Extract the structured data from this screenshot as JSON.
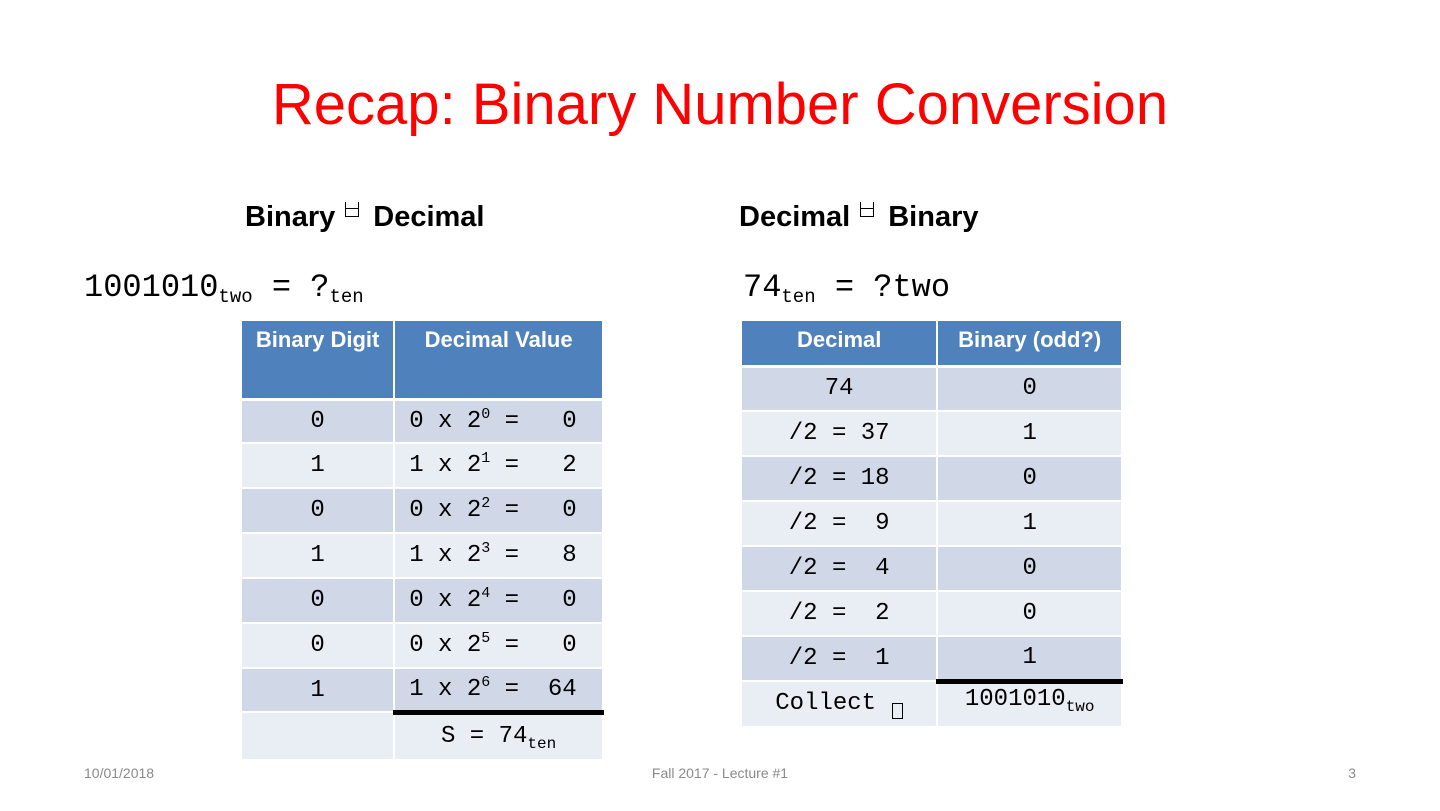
{
  "slide": {
    "title": "Recap: Binary Number Conversion",
    "page_number": "3"
  },
  "left": {
    "heading_from": "Binary",
    "heading_to": "Decimal",
    "expr_number": "1001010",
    "expr_sub1": "two",
    "expr_mid": " = ?",
    "expr_sub2": "ten",
    "table": {
      "headers": [
        "Binary Digit",
        "Decimal Value"
      ],
      "rows": [
        {
          "digit": "0",
          "coef": "0",
          "exp": "0",
          "result": "  0"
        },
        {
          "digit": "1",
          "coef": "1",
          "exp": "1",
          "result": "  2"
        },
        {
          "digit": "0",
          "coef": "0",
          "exp": "2",
          "result": "  0"
        },
        {
          "digit": "1",
          "coef": "1",
          "exp": "3",
          "result": "  8"
        },
        {
          "digit": "0",
          "coef": "0",
          "exp": "4",
          "result": "  0"
        },
        {
          "digit": "0",
          "coef": "0",
          "exp": "5",
          "result": "  0"
        },
        {
          "digit": "1",
          "coef": "1",
          "exp": "6",
          "result": " 64"
        }
      ],
      "sum_label": "S = 74",
      "sum_sub": "ten"
    }
  },
  "right": {
    "heading_from": "Decimal",
    "heading_to": "Binary",
    "expr_number": "74",
    "expr_sub1": "ten",
    "expr_rest": " = ?two",
    "table": {
      "headers": [
        "Decimal",
        "Binary (odd?)"
      ],
      "rows": [
        {
          "decimal": "74",
          "bit": "0"
        },
        {
          "decimal": "/2 = 37",
          "bit": "1"
        },
        {
          "decimal": "/2 = 18",
          "bit": "0"
        },
        {
          "decimal": "/2 =  9",
          "bit": "1"
        },
        {
          "decimal": "/2 =  4",
          "bit": "0"
        },
        {
          "decimal": "/2 =  2",
          "bit": "0"
        },
        {
          "decimal": "/2 =  1",
          "bit": "1"
        }
      ],
      "collect_label": "Collect",
      "result_number": "1001010",
      "result_sub": "two"
    }
  },
  "footer": {
    "date": "10/01/2018",
    "course": "Fall 2017 - Lecture #1"
  }
}
